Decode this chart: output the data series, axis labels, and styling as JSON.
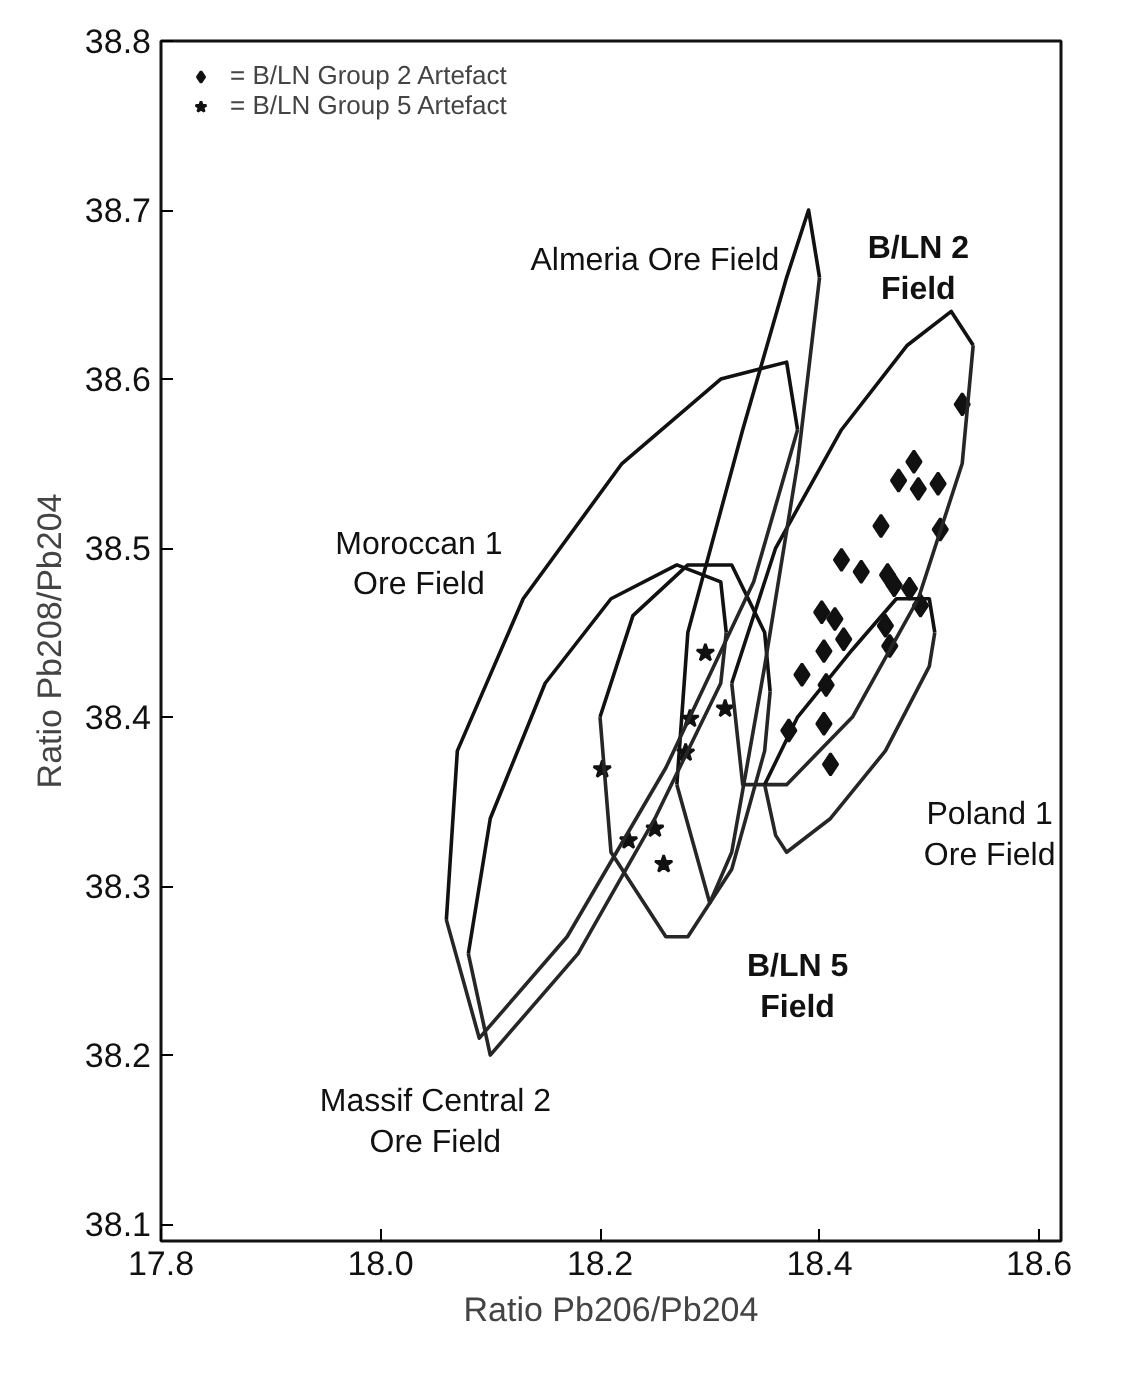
{
  "chart_data": {
    "type": "scatter",
    "xlabel": "Ratio Pb206/Pb204",
    "ylabel": "Ratio Pb208/Pb204",
    "xlim": [
      17.8,
      18.62
    ],
    "ylim": [
      38.09,
      38.8
    ],
    "xticks": [
      {
        "value": 17.8,
        "label": "17.8"
      },
      {
        "value": 18.0,
        "label": "18.0"
      },
      {
        "value": 18.2,
        "label": "18.2"
      },
      {
        "value": 18.4,
        "label": "18.4"
      },
      {
        "value": 18.6,
        "label": "18.6"
      }
    ],
    "yticks": [
      {
        "value": 38.1,
        "label": "38.1"
      },
      {
        "value": 38.2,
        "label": "38.2"
      },
      {
        "value": 38.3,
        "label": "38.3"
      },
      {
        "value": 38.4,
        "label": "38.4"
      },
      {
        "value": 38.5,
        "label": "38.5"
      },
      {
        "value": 38.6,
        "label": "38.6"
      },
      {
        "value": 38.7,
        "label": "38.7"
      },
      {
        "value": 38.8,
        "label": "38.8"
      }
    ],
    "grid": false,
    "legend": "top left",
    "series": [
      {
        "name": "= B/LN Group 2 Artefact",
        "marker": "diamond",
        "color": "#111111",
        "x": [
          18.53,
          18.486,
          18.472,
          18.49,
          18.508,
          18.456,
          18.51,
          18.42,
          18.438,
          18.462,
          18.468,
          18.482,
          18.492,
          18.402,
          18.414,
          18.422,
          18.46,
          18.464,
          18.404,
          18.384,
          18.406,
          18.372,
          18.404,
          18.41
        ],
        "values": [
          38.585,
          38.551,
          38.54,
          38.535,
          38.538,
          38.513,
          38.511,
          38.493,
          38.486,
          38.484,
          38.478,
          38.476,
          38.466,
          38.462,
          38.458,
          38.446,
          38.454,
          38.442,
          38.439,
          38.425,
          38.419,
          38.392,
          38.396,
          38.372
        ]
      },
      {
        "name": "= B/LN Group 5 Artefact",
        "marker": "star",
        "color": "#111111",
        "x": [
          18.296,
          18.314,
          18.282,
          18.278,
          18.202,
          18.25,
          18.226,
          18.258
        ],
        "values": [
          38.438,
          38.405,
          38.399,
          38.379,
          38.369,
          38.334,
          38.327,
          38.313
        ]
      },
      {
        "type": "line",
        "color": "#111111",
        "x": [
          18.32,
          18.36,
          18.42,
          18.48,
          18.52,
          18.54
        ],
        "values": [
          38.42,
          38.5,
          38.57,
          38.62,
          38.64,
          38.62
        ]
      },
      {
        "type": "line",
        "color": "#262626",
        "x": [
          18.32,
          18.33,
          18.37,
          18.43,
          18.49,
          18.53,
          18.54
        ],
        "values": [
          38.42,
          38.36,
          38.36,
          38.4,
          38.47,
          38.55,
          38.62
        ]
      },
      {
        "type": "line",
        "color": "#111111",
        "x": [
          18.2,
          18.23,
          18.28,
          18.32,
          18.35,
          18.355
        ],
        "values": [
          38.4,
          38.46,
          38.49,
          38.49,
          38.45,
          38.415
        ]
      },
      {
        "type": "line",
        "color": "#262626",
        "x": [
          18.2,
          18.21,
          18.26,
          18.28,
          18.32,
          18.35,
          18.355
        ],
        "values": [
          38.4,
          38.32,
          38.27,
          38.27,
          38.31,
          38.38,
          38.415
        ]
      },
      {
        "type": "line",
        "color": "#111111",
        "x": [
          18.27,
          18.28,
          18.33,
          18.37,
          18.39,
          18.4
        ],
        "values": [
          38.36,
          38.45,
          38.57,
          38.66,
          38.7,
          38.66
        ]
      },
      {
        "type": "line",
        "color": "#262626",
        "x": [
          18.27,
          18.3,
          18.32,
          18.35,
          18.38,
          18.4
        ],
        "values": [
          38.36,
          38.29,
          38.32,
          38.43,
          38.55,
          38.66
        ]
      },
      {
        "type": "line",
        "color": "#111111",
        "x": [
          18.06,
          18.07,
          18.13,
          18.22,
          18.31,
          18.37,
          18.38
        ],
        "values": [
          38.28,
          38.38,
          38.47,
          38.55,
          38.6,
          38.61,
          38.57
        ]
      },
      {
        "type": "line",
        "color": "#262626",
        "x": [
          18.06,
          18.09,
          18.17,
          18.26,
          18.34,
          18.38
        ],
        "values": [
          38.28,
          38.21,
          38.27,
          38.37,
          38.48,
          38.57
        ]
      },
      {
        "type": "line",
        "color": "#111111",
        "x": [
          18.08,
          18.1,
          18.15,
          18.21,
          18.27,
          18.31,
          18.315
        ],
        "values": [
          38.26,
          38.34,
          38.42,
          38.47,
          38.49,
          38.48,
          38.45
        ]
      },
      {
        "type": "line",
        "color": "#262626",
        "x": [
          18.08,
          18.1,
          18.18,
          18.25,
          18.31,
          18.315
        ],
        "values": [
          38.26,
          38.2,
          38.26,
          38.34,
          38.42,
          38.45
        ]
      },
      {
        "type": "line",
        "color": "#111111",
        "x": [
          18.35,
          18.38,
          18.43,
          18.47,
          18.5,
          18.505
        ],
        "values": [
          38.36,
          38.4,
          38.44,
          38.47,
          38.47,
          38.45
        ]
      },
      {
        "type": "line",
        "color": "#262626",
        "x": [
          18.35,
          18.36,
          18.37,
          18.41,
          18.46,
          18.5,
          18.505
        ],
        "values": [
          38.36,
          38.33,
          38.32,
          38.34,
          38.38,
          38.43,
          38.45
        ]
      }
    ],
    "annotations": [
      "Almeria Ore Field",
      "B/LN 2\nField",
      "Moroccan 1\nOre Field",
      "Poland 1\nOre Field",
      "B/LN 5\nField",
      "Massif Central 2\nOre Field"
    ]
  }
}
